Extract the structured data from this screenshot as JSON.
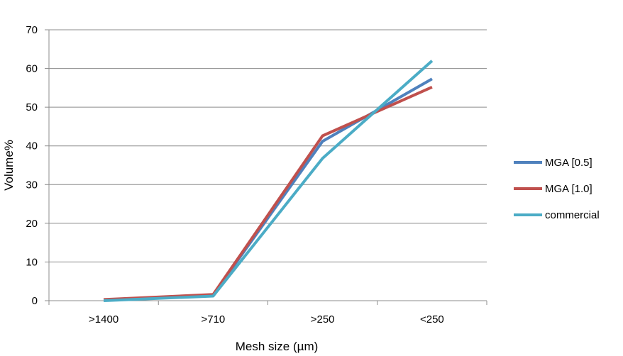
{
  "chart_data": {
    "type": "line",
    "categories": [
      ">1400",
      ">710",
      ">250",
      "<250"
    ],
    "series": [
      {
        "name": "MGA [0.5]",
        "color": "#4f81bd",
        "values": [
          0.2,
          1.5,
          41.2,
          57.3
        ]
      },
      {
        "name": "MGA [1.0]",
        "color": "#c0504d",
        "values": [
          0.3,
          1.6,
          42.6,
          55.2
        ]
      },
      {
        "name": "commercial",
        "color": "#4bacc6",
        "values": [
          0.0,
          1.2,
          36.8,
          62.0
        ]
      }
    ],
    "title": "",
    "xlabel": "Mesh size (µm)",
    "ylabel": "Volume%",
    "ylim": [
      0,
      70
    ],
    "yticks": [
      "0",
      "10",
      "20",
      "30",
      "40",
      "50",
      "60",
      "70"
    ],
    "grid": true,
    "legend_position": "right"
  }
}
